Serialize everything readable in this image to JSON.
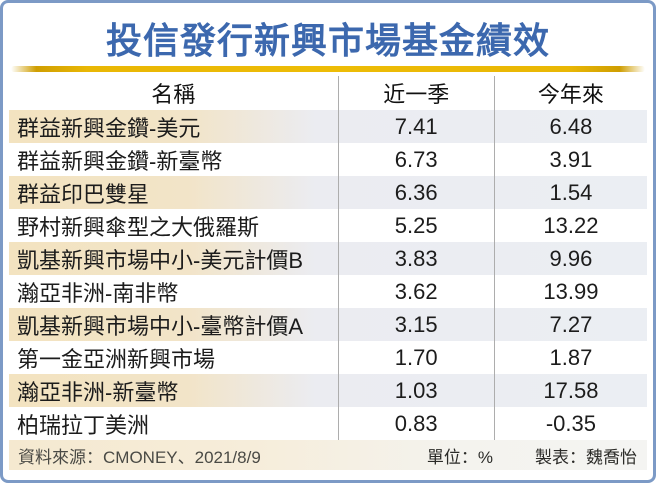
{
  "title": "投信發行新興市場基金績效",
  "colors": {
    "title_blue": "#3c68ae",
    "gold_rule": "#edbc06",
    "frame_blue": "#7c9ac6",
    "highlight_left_cream": "#f3e3c0",
    "highlight_right_gray": "#ebeef3",
    "footer_cream": "#f5e9d0"
  },
  "table": {
    "columns": {
      "name": "名稱",
      "last_quarter": "近一季",
      "ytd": "今年來"
    },
    "rows": [
      {
        "name": "群益新興金鑽-美元",
        "last_quarter": "7.41",
        "ytd": "6.48"
      },
      {
        "name": "群益新興金鑽-新臺幣",
        "last_quarter": "6.73",
        "ytd": "3.91"
      },
      {
        "name": "群益印巴雙星",
        "last_quarter": "6.36",
        "ytd": "1.54"
      },
      {
        "name": "野村新興傘型之大俄羅斯",
        "last_quarter": "5.25",
        "ytd": "13.22"
      },
      {
        "name": "凱基新興市場中小-美元計價B",
        "last_quarter": "3.83",
        "ytd": "9.96"
      },
      {
        "name": "瀚亞非洲-南非幣",
        "last_quarter": "3.62",
        "ytd": "13.99"
      },
      {
        "name": "凱基新興市場中小-臺幣計價A",
        "last_quarter": "3.15",
        "ytd": "7.27"
      },
      {
        "name": "第一金亞洲新興市場",
        "last_quarter": "1.70",
        "ytd": "1.87"
      },
      {
        "name": "瀚亞非洲-新臺幣",
        "last_quarter": "1.03",
        "ytd": "17.58"
      },
      {
        "name": "柏瑞拉丁美洲",
        "last_quarter": "0.83",
        "ytd": "-0.35"
      }
    ]
  },
  "footer": {
    "source": "資料來源：CMONEY、2021/8/9",
    "unit": "單位：%",
    "credit": "製表：魏喬怡"
  },
  "chart_data": {
    "type": "table",
    "title": "投信發行新興市場基金績效",
    "columns": [
      "名稱",
      "近一季",
      "今年來"
    ],
    "unit": "%",
    "rows": [
      [
        "群益新興金鑽-美元",
        7.41,
        6.48
      ],
      [
        "群益新興金鑽-新臺幣",
        6.73,
        3.91
      ],
      [
        "群益印巴雙星",
        6.36,
        1.54
      ],
      [
        "野村新興傘型之大俄羅斯",
        5.25,
        13.22
      ],
      [
        "凱基新興市場中小-美元計價B",
        3.83,
        9.96
      ],
      [
        "瀚亞非洲-南非幣",
        3.62,
        13.99
      ],
      [
        "凱基新興市場中小-臺幣計價A",
        3.15,
        7.27
      ],
      [
        "第一金亞洲新興市場",
        1.7,
        1.87
      ],
      [
        "瀚亞非洲-新臺幣",
        1.03,
        17.58
      ],
      [
        "柏瑞拉丁美洲",
        0.83,
        -0.35
      ]
    ],
    "source": "CMONEY、2021/8/9",
    "prepared_by": "魏喬怡"
  }
}
